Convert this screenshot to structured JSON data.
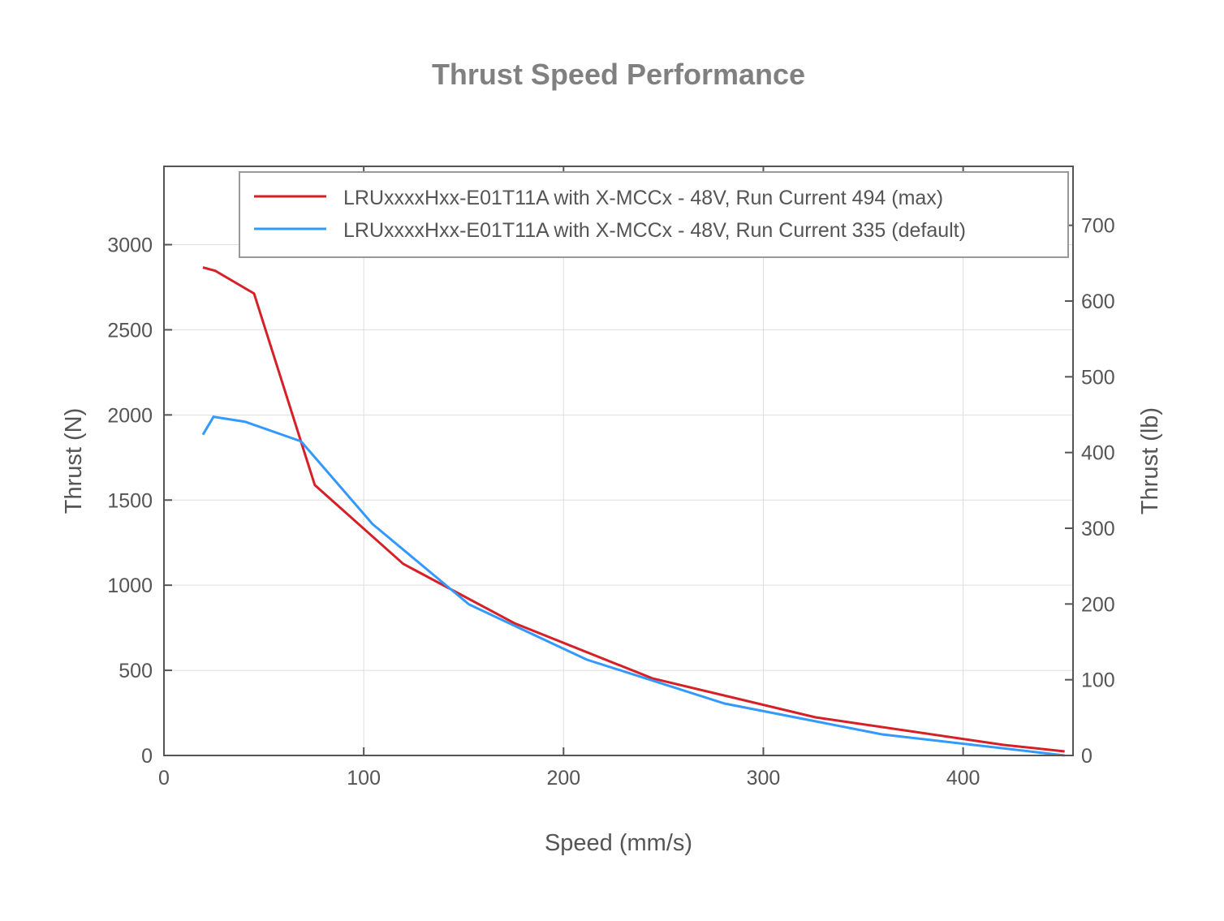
{
  "chart_data": {
    "type": "line",
    "title": "Thrust Speed Performance",
    "xlabel": "Speed (mm/s)",
    "ylabel": "Thrust (N)",
    "ylabel_right": "Thrust (lb)",
    "xlim": [
      0,
      455
    ],
    "ylim": [
      0,
      3460
    ],
    "ylim_right_note": "lb = N / 4.448",
    "xticks": [
      0,
      100,
      200,
      300,
      400
    ],
    "yticks": [
      0,
      500,
      1000,
      1500,
      2000,
      2500,
      3000
    ],
    "yticks_right": [
      0,
      100,
      200,
      300,
      400,
      500,
      600,
      700
    ],
    "grid": true,
    "legend_placement": "top-right",
    "series": [
      {
        "name": "LRUxxxxHxx-E01T11A with X-MCCx - 48V, Run Current 494 (max)",
        "color": "#d62027",
        "x": [
          19.5,
          25.6,
          45.1,
          75.5,
          119.8,
          175.4,
          244.4,
          326.1,
          420.3,
          450.8
        ],
        "y": [
          2866,
          2847,
          2713,
          1588,
          1125,
          777,
          453,
          224,
          62,
          24
        ]
      },
      {
        "name": "LRUxxxxHxx-E01T11A with X-MCCx - 48V, Run Current 335 (default)",
        "color": "#3399ff",
        "x": [
          19.5,
          24.8,
          40.6,
          68.6,
          104.4,
          152.7,
          211.6,
          280.6,
          359.4,
          450.8
        ],
        "y": [
          1884,
          1989,
          1960,
          1845,
          1359,
          887,
          563,
          305,
          124,
          0
        ]
      }
    ]
  }
}
